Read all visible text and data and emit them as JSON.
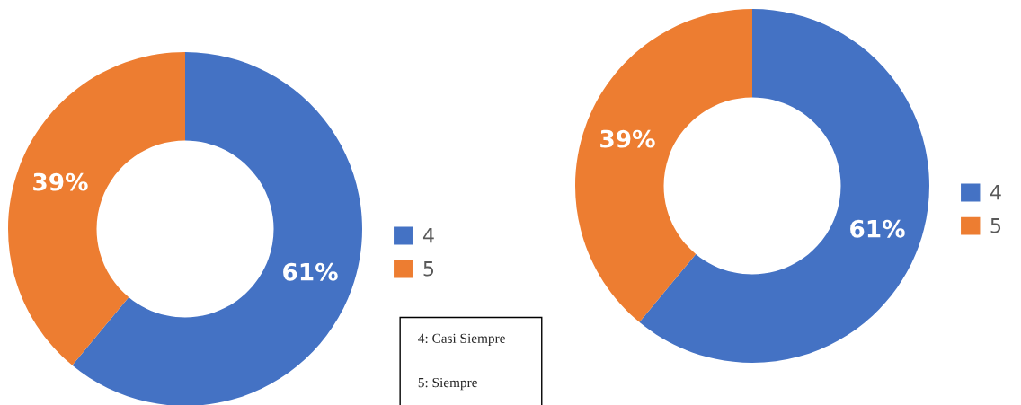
{
  "chart_data": [
    {
      "type": "donut",
      "categories": [
        "4",
        "5"
      ],
      "values": [
        61,
        39
      ],
      "colors": [
        "#4472c4",
        "#ed7d31"
      ],
      "value_labels": [
        "61%",
        "39%"
      ],
      "legend": "right",
      "annotations": [
        "4: Casi Siempre",
        "5: Siempre"
      ]
    },
    {
      "type": "donut",
      "categories": [
        "4",
        "5"
      ],
      "values": [
        61,
        39
      ],
      "colors": [
        "#4472c4",
        "#ed7d31"
      ],
      "value_labels": [
        "61%",
        "39%"
      ],
      "legend": "right"
    }
  ]
}
